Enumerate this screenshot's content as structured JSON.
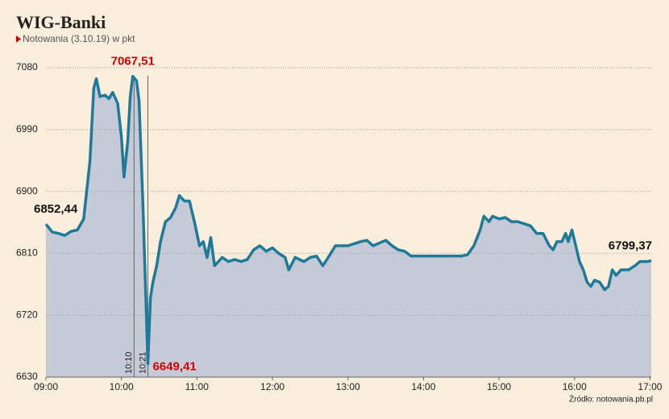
{
  "chart_data": {
    "type": "area",
    "title": "WIG-Banki",
    "subtitle": "Notowania (3.10.19) w pkt",
    "source": "Źródło: notowania.pb.pl",
    "x": [
      "09:00",
      "09:05",
      "09:10",
      "09:15",
      "09:20",
      "09:25",
      "09:30",
      "09:35",
      "09:38",
      "09:40",
      "09:43",
      "09:47",
      "09:50",
      "09:53",
      "09:57",
      "10:00",
      "10:02",
      "10:05",
      "10:07",
      "10:09",
      "10:12",
      "10:14",
      "10:17",
      "10:21",
      "10:23",
      "10:25",
      "10:28",
      "10:31",
      "10:35",
      "10:39",
      "10:43",
      "10:46",
      "10:50",
      "10:54",
      "10:58",
      "11:02",
      "11:05",
      "11:08",
      "11:11",
      "11:14",
      "11:20",
      "11:25",
      "11:30",
      "11:35",
      "11:40",
      "11:45",
      "11:50",
      "11:55",
      "12:00",
      "12:05",
      "12:10",
      "12:13",
      "12:18",
      "12:25",
      "12:30",
      "12:35",
      "12:40",
      "12:45",
      "12:50",
      "13:00",
      "13:10",
      "13:15",
      "13:20",
      "13:30",
      "13:35",
      "13:40",
      "13:45",
      "13:50",
      "14:00",
      "14:10",
      "14:20",
      "14:30",
      "14:35",
      "14:40",
      "14:45",
      "14:48",
      "14:52",
      "14:55",
      "15:00",
      "15:05",
      "15:10",
      "15:15",
      "15:20",
      "15:25",
      "15:30",
      "15:35",
      "15:40",
      "15:43",
      "15:46",
      "15:50",
      "15:53",
      "15:55",
      "15:58",
      "16:01",
      "16:04",
      "16:07",
      "16:10",
      "16:13",
      "16:16",
      "16:20",
      "16:24",
      "16:27",
      "16:30",
      "16:33",
      "16:37",
      "16:43",
      "16:48",
      "16:52",
      "16:58",
      "17:01"
    ],
    "values": [
      6852.44,
      6841,
      6839,
      6836,
      6842,
      6844,
      6860,
      6944,
      7050,
      7064,
      7038,
      7040,
      7035,
      7044,
      7028,
      6979,
      6921,
      6973,
      7038,
      7067.51,
      7061,
      7032,
      6885,
      6649.41,
      6745,
      6768,
      6792,
      6827,
      6856,
      6862,
      6876,
      6894,
      6886,
      6886,
      6856,
      6821,
      6827,
      6804,
      6833,
      6792,
      6804,
      6798,
      6801,
      6798,
      6801,
      6815,
      6821,
      6813,
      6818,
      6810,
      6804,
      6786,
      6804,
      6798,
      6804,
      6806,
      6792,
      6806,
      6821,
      6821,
      6827,
      6829,
      6821,
      6829,
      6821,
      6815,
      6813,
      6806,
      6806,
      6806,
      6806,
      6806,
      6808,
      6821,
      6844,
      6864,
      6856,
      6864,
      6860,
      6862,
      6856,
      6856,
      6853,
      6850,
      6839,
      6839,
      6821,
      6815,
      6827,
      6827,
      6839,
      6827,
      6844,
      6821,
      6798,
      6786,
      6768,
      6762,
      6771,
      6768,
      6757,
      6762,
      6786,
      6778,
      6786,
      6786,
      6792,
      6798,
      6798,
      6799.37
    ],
    "color": "#1f7a9a",
    "fill": "#c5cad6",
    "xlim": [
      "09:00",
      "17:01"
    ],
    "xticks": [
      "09:00",
      "10:00",
      "11:00",
      "12:00",
      "13:00",
      "14:00",
      "15:00",
      "16:00",
      "17:00"
    ],
    "ylim": [
      6630,
      7080
    ],
    "yticks": [
      6630,
      6720,
      6810,
      6900,
      6990,
      7080
    ],
    "grid": true,
    "markers": [
      "10:10",
      "10:21"
    ],
    "annotations": [
      {
        "label": "6852,44",
        "x": "09:00",
        "value": 6852.44,
        "color": "#111111"
      },
      {
        "label": "7067,51",
        "x": "10:09",
        "value": 7067.51,
        "color": "#d40000"
      },
      {
        "label": "6649,41",
        "x": "10:21",
        "value": 6649.41,
        "color": "#d40000"
      },
      {
        "label": "6799,37",
        "x": "17:01",
        "value": 6799.37,
        "color": "#111111"
      }
    ]
  }
}
